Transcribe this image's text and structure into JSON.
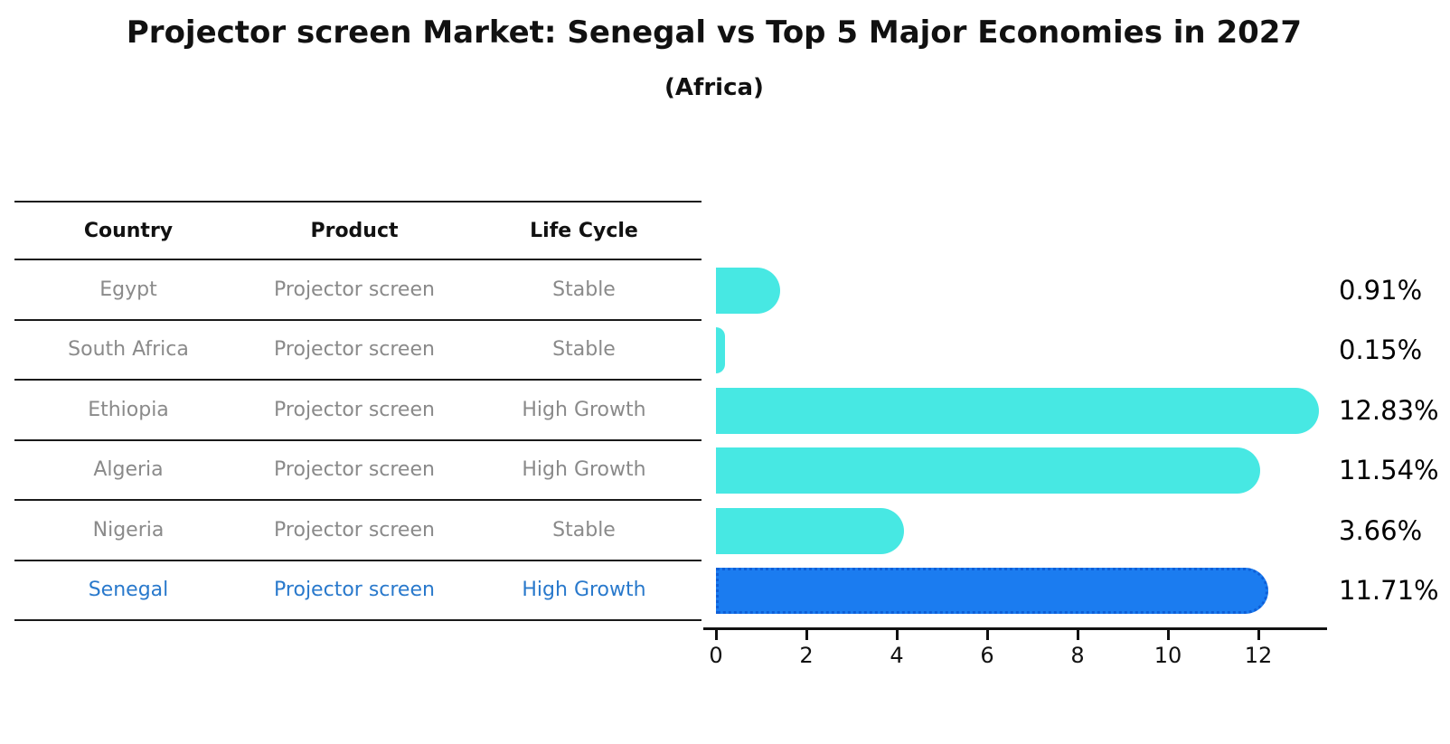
{
  "title": "Projector screen Market: Senegal vs Top 5 Major Economies in 2027",
  "subtitle": "(Africa)",
  "table": {
    "headers": [
      "Country",
      "Product",
      "Life Cycle"
    ],
    "rows": [
      {
        "country": "Egypt",
        "product": "Projector screen",
        "life_cycle": "Stable",
        "highlighted": false
      },
      {
        "country": "South Africa",
        "product": "Projector screen",
        "life_cycle": "Stable",
        "highlighted": false
      },
      {
        "country": "Ethiopia",
        "product": "Projector screen",
        "life_cycle": "High Growth",
        "highlighted": false
      },
      {
        "country": "Algeria",
        "product": "Projector screen",
        "life_cycle": "High Growth",
        "highlighted": false
      },
      {
        "country": "Nigeria",
        "product": "Projector screen",
        "life_cycle": "Stable",
        "highlighted": false
      },
      {
        "country": "Senegal",
        "product": "Projector screen",
        "life_cycle": "High Growth",
        "highlighted": true
      }
    ]
  },
  "chart_data": {
    "type": "bar",
    "orientation": "horizontal",
    "title": "Projector screen Market: Senegal vs Top 5 Major Economies in 2027 (Africa)",
    "categories": [
      "Egypt",
      "South Africa",
      "Ethiopia",
      "Algeria",
      "Nigeria",
      "Senegal"
    ],
    "values": [
      0.91,
      0.15,
      12.83,
      11.54,
      3.66,
      11.71
    ],
    "value_labels": [
      "0.91%",
      "0.15%",
      "12.83%",
      "11.54%",
      "3.66%",
      "11.71%"
    ],
    "x_ticks": [
      "0",
      "2",
      "4",
      "6",
      "8",
      "10",
      "12"
    ],
    "x_tick_values": [
      0,
      2,
      4,
      6,
      8,
      10,
      12
    ],
    "xlim": [
      0,
      13.5
    ],
    "grid": false,
    "legend": "none",
    "highlight_index": 5
  },
  "colors": {
    "bar_default": "#47e8e3",
    "bar_highlight": "#1b7cf0",
    "bar_highlight_border": "#0e5fd8",
    "row_text": "#8a8a8a",
    "highlight_text": "#2979cc",
    "heading_text": "#111111",
    "axis": "#111111"
  }
}
